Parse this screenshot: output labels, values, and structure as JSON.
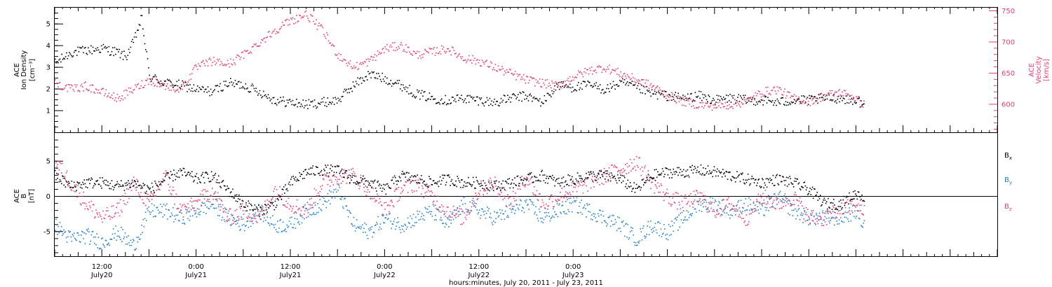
{
  "chart_data": [
    {
      "type": "scatter",
      "ylabel_left_lines": [
        "ACE",
        "Ion Density"
      ],
      "ylabel_left_unit": "[cm⁻³]",
      "ylabel_right_lines": [
        "ACE",
        "Velocity"
      ],
      "ylabel_right_unit": "[km/s]",
      "left_ticks": [
        "1",
        "2",
        "3",
        "4",
        "5"
      ],
      "left_tick_values": [
        1,
        2,
        3,
        4,
        5
      ],
      "ylim_left": [
        0,
        5.75
      ],
      "right_ticks": [
        "600",
        "650",
        "700",
        "750"
      ],
      "right_tick_values": [
        600,
        650,
        700,
        750
      ],
      "ylim_right": [
        555,
        755
      ],
      "colors": {
        "density": "#000000",
        "velocity": "#e83e6c"
      },
      "series": [
        {
          "key": "density",
          "hours": [
            0,
            2,
            4,
            6,
            8,
            9,
            10,
            11,
            12,
            14,
            16,
            18,
            20,
            22,
            24,
            26,
            28,
            30,
            32,
            34,
            36,
            38,
            40,
            42,
            44,
            46,
            48,
            50,
            52,
            54,
            56,
            58,
            60,
            62,
            64,
            66,
            68,
            70,
            72,
            74,
            76,
            78,
            80,
            82,
            84,
            86,
            88,
            90,
            92,
            94,
            96,
            98,
            100,
            102,
            103
          ],
          "values": [
            3.2,
            3.7,
            3.8,
            3.9,
            3.7,
            3.5,
            4.2,
            5.3,
            2.6,
            2.3,
            2.2,
            2.0,
            1.9,
            2.3,
            2.2,
            1.9,
            1.5,
            1.4,
            1.3,
            1.4,
            1.5,
            2.2,
            2.7,
            2.5,
            2.2,
            1.8,
            1.6,
            1.5,
            1.6,
            1.5,
            1.4,
            1.6,
            1.7,
            1.4,
            2.2,
            2.1,
            2.2,
            2.0,
            2.3,
            2.1,
            1.8,
            1.7,
            1.6,
            1.7,
            1.5,
            1.6,
            1.5,
            1.5,
            1.4,
            1.5,
            1.5,
            1.6,
            1.6,
            1.5,
            1.3
          ]
        },
        {
          "key": "velocity",
          "hours": [
            0,
            2,
            4,
            6,
            8,
            10,
            12,
            14,
            16,
            18,
            20,
            22,
            24,
            26,
            28,
            30,
            32,
            34,
            36,
            38,
            40,
            42,
            44,
            46,
            48,
            50,
            52,
            54,
            56,
            58,
            60,
            62,
            64,
            66,
            68,
            70,
            72,
            74,
            76,
            78,
            80,
            82,
            84,
            86,
            88,
            90,
            92,
            94,
            96,
            98,
            100,
            102,
            103
          ],
          "values": [
            635,
            625,
            630,
            620,
            610,
            625,
            640,
            630,
            625,
            660,
            670,
            665,
            680,
            700,
            720,
            735,
            745,
            720,
            680,
            660,
            670,
            690,
            695,
            680,
            685,
            690,
            675,
            670,
            660,
            650,
            640,
            635,
            630,
            645,
            655,
            660,
            650,
            640,
            630,
            615,
            605,
            600,
            598,
            600,
            605,
            620,
            625,
            610,
            605,
            615,
            620,
            610,
            600
          ]
        }
      ],
      "x_range_hours": [
        0,
        120
      ]
    },
    {
      "type": "scatter",
      "ylabel_lines": [
        "ACE",
        "B"
      ],
      "ylabel_unit": "[nT]",
      "left_ticks": [
        "-5",
        "0",
        "5"
      ],
      "left_tick_values": [
        -5,
        0,
        5
      ],
      "ylim": [
        -8.5,
        9
      ],
      "zero_line": 0,
      "colors": {
        "Bx": "#000000",
        "By": "#1e7fd6",
        "Bz": "#e83e6c"
      },
      "series": [
        {
          "key": "Bx",
          "name_main": "B",
          "name_sub": "x",
          "hours": [
            0,
            2,
            4,
            6,
            8,
            10,
            12,
            14,
            16,
            18,
            20,
            22,
            24,
            26,
            28,
            30,
            32,
            34,
            36,
            38,
            40,
            42,
            44,
            46,
            48,
            50,
            52,
            54,
            56,
            58,
            60,
            62,
            64,
            66,
            68,
            70,
            72,
            74,
            76,
            78,
            80,
            82,
            84,
            86,
            88,
            90,
            92,
            94,
            96,
            98,
            100,
            102,
            103
          ],
          "values": [
            3,
            1.5,
            2,
            2,
            1.5,
            2,
            1,
            2.5,
            3.5,
            2.5,
            3,
            1,
            -1,
            -2,
            -1,
            2,
            3.5,
            3.8,
            3.7,
            2.5,
            2,
            1,
            3,
            2.5,
            2,
            2.5,
            2,
            2,
            1.5,
            2,
            2.5,
            3,
            2,
            2.5,
            3,
            3,
            2.5,
            1,
            3,
            3.5,
            3.5,
            3.8,
            3.5,
            3,
            2.5,
            2,
            2.5,
            2,
            1,
            -1,
            -1,
            0.5,
            0
          ]
        },
        {
          "key": "By",
          "name_main": "B",
          "name_sub": "y",
          "hours": [
            0,
            2,
            4,
            6,
            8,
            10,
            12,
            14,
            16,
            18,
            20,
            22,
            24,
            26,
            28,
            30,
            32,
            34,
            36,
            38,
            40,
            42,
            44,
            46,
            48,
            50,
            52,
            54,
            56,
            58,
            60,
            62,
            64,
            66,
            68,
            70,
            72,
            74,
            76,
            78,
            80,
            82,
            84,
            86,
            88,
            90,
            92,
            94,
            96,
            98,
            100,
            102,
            103
          ],
          "values": [
            -4,
            -6,
            -5.5,
            -6.5,
            -5,
            -7,
            -2,
            -2,
            -3,
            -2,
            -1,
            -3,
            -4,
            -2,
            -4,
            -4,
            -2,
            -1,
            1,
            -4,
            -5,
            -3,
            -4,
            -3,
            -2,
            -4,
            -1,
            -2,
            -3,
            -2,
            -1,
            -3,
            -2,
            -1,
            -2,
            -3,
            -4,
            -6,
            -4,
            -5,
            -3,
            -1,
            -1,
            -2,
            -1,
            -2,
            0,
            -2,
            -3,
            -3,
            -3,
            -2,
            -4
          ]
        },
        {
          "key": "Bz",
          "name_main": "B",
          "name_sub": "z",
          "hours": [
            0,
            2,
            4,
            6,
            8,
            10,
            12,
            14,
            16,
            18,
            20,
            22,
            24,
            26,
            28,
            30,
            32,
            34,
            36,
            38,
            40,
            42,
            44,
            46,
            48,
            50,
            52,
            54,
            56,
            58,
            60,
            62,
            64,
            66,
            68,
            70,
            72,
            74,
            76,
            78,
            80,
            82,
            84,
            86,
            88,
            90,
            92,
            94,
            96,
            98,
            100,
            102,
            103
          ],
          "values": [
            5,
            2,
            -1,
            -3,
            -2,
            2,
            -1,
            3,
            -2,
            -1,
            1,
            -3,
            -2,
            -3,
            1,
            -1,
            -2,
            2,
            3,
            3,
            1,
            -2,
            1,
            2,
            0,
            -2,
            -3,
            1,
            2,
            -1,
            3,
            -1,
            0,
            1,
            2,
            3,
            4,
            5,
            2,
            0,
            -1,
            0,
            -2,
            -1,
            -3,
            0,
            -1,
            0,
            -3,
            -3,
            -2,
            -1,
            -2
          ]
        }
      ],
      "x_range_hours": [
        0,
        120
      ]
    }
  ],
  "xaxis": {
    "tick_labels": [
      {
        "time": "12:00",
        "date": "July20",
        "hour": 6
      },
      {
        "time": "0:00",
        "date": "July21",
        "hour": 18
      },
      {
        "time": "12:00",
        "date": "July21",
        "hour": 30
      },
      {
        "time": "0:00",
        "date": "July22",
        "hour": 42
      },
      {
        "time": "12:00",
        "date": "July22",
        "hour": 54
      },
      {
        "time": "0:00",
        "date": "July23",
        "hour": 66
      }
    ],
    "caption": "hours:minutes, July 20, 2011 - July 23, 2011"
  }
}
